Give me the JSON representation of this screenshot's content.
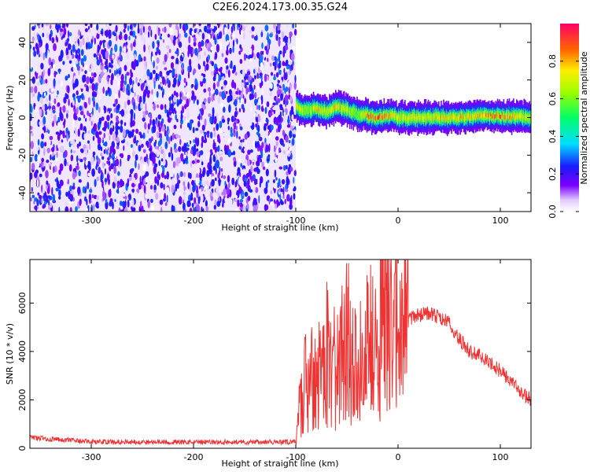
{
  "title": "C2E6.2024.173.00.35.G24",
  "chart_data": [
    {
      "type": "heatmap",
      "xlabel": "Height of straight line (km)",
      "ylabel": "Frequency (Hz)",
      "xlim": [
        -360,
        130
      ],
      "ylim": [
        -50,
        50
      ],
      "xticks": [
        -300,
        -200,
        -100,
        0,
        100
      ],
      "yticks": [
        -40,
        -20,
        0,
        20,
        40
      ],
      "noise_region": {
        "x": [
          -360,
          -100
        ],
        "y": [
          -50,
          50
        ],
        "amplitude_range": [
          0.0,
          0.3
        ]
      },
      "signal_track": {
        "x": [
          -100,
          -90,
          -80,
          -70,
          -60,
          -50,
          -40,
          -30,
          -20,
          -10,
          0,
          20,
          40,
          60,
          80,
          100,
          130
        ],
        "frequency": [
          6,
          4,
          5,
          3,
          6,
          4,
          2,
          1,
          0,
          1,
          0,
          0,
          0,
          0,
          1,
          1,
          0
        ],
        "peak_amplitude": [
          0.85,
          0.6,
          0.8,
          0.7,
          0.85,
          0.7,
          0.6,
          0.9,
          0.95,
          0.85,
          0.75,
          0.75,
          0.8,
          0.8,
          0.85,
          0.9,
          0.7
        ]
      },
      "colorbar": {
        "label": "Normalized spectral amplitude",
        "range": [
          0.0,
          1.0
        ],
        "ticks": [
          "0.0",
          "0.2",
          "0.4",
          "0.6",
          "0.8"
        ]
      },
      "grid": false
    },
    {
      "type": "line",
      "xlabel": "Height of straight line (km)",
      "ylabel": "SNR (10 * v/v)",
      "xlim": [
        -360,
        130
      ],
      "ylim": [
        0,
        7800
      ],
      "xticks": [
        -300,
        -200,
        -100,
        0,
        100
      ],
      "yticks": [
        0,
        2000,
        4000,
        6000
      ],
      "series": [
        {
          "color": "#ee3333",
          "x": [
            -360,
            -340,
            -300,
            -250,
            -200,
            -150,
            -110,
            -100,
            -97,
            -90,
            -80,
            -70,
            -60,
            -50,
            -40,
            -30,
            -20,
            -14,
            -10,
            0,
            10,
            20,
            30,
            40,
            50,
            60,
            70,
            80,
            90,
            100,
            110,
            120,
            130
          ],
          "y": [
            450,
            380,
            270,
            260,
            250,
            260,
            250,
            250,
            1500,
            3000,
            2700,
            3900,
            3200,
            4500,
            3300,
            4500,
            4000,
            7200,
            5000,
            5000,
            5300,
            5500,
            5600,
            5400,
            5200,
            4500,
            4000,
            3800,
            3500,
            3200,
            2800,
            2300,
            2000
          ]
        }
      ],
      "grid": false
    }
  ]
}
